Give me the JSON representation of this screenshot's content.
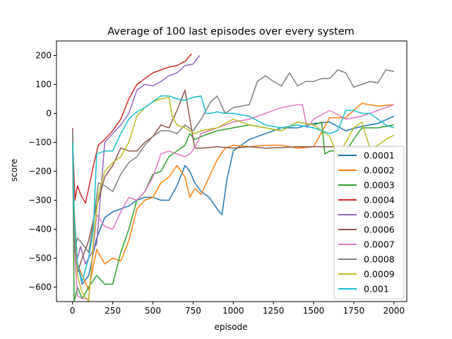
{
  "chart_data": {
    "type": "line",
    "title": "Average of 100 last episodes over every system",
    "xlabel": "episode",
    "ylabel": "score",
    "xlim": [
      -100,
      2080
    ],
    "ylim": [
      -650,
      250
    ],
    "xticks": [
      0,
      250,
      500,
      750,
      1000,
      1250,
      1500,
      1750,
      2000
    ],
    "yticks": [
      -600,
      -500,
      -400,
      -300,
      -200,
      -100,
      0,
      100,
      200
    ],
    "xtick_labels": [
      "0",
      "250",
      "500",
      "750",
      "1000",
      "1250",
      "1500",
      "1750",
      "2000"
    ],
    "ytick_labels": [
      "−600",
      "−500",
      "−400",
      "−300",
      "−200",
      "−100",
      "0",
      "100",
      "200"
    ],
    "grid": false,
    "legend_position": "lower-right",
    "series": [
      {
        "name": "0.0001",
        "color": "#1f77b4",
        "x": [
          0,
          10,
          30,
          60,
          100,
          150,
          200,
          250,
          300,
          350,
          400,
          450,
          500,
          550,
          600,
          650,
          700,
          730,
          760,
          800,
          850,
          900,
          930,
          960,
          1000,
          1100,
          1200,
          1300,
          1400,
          1500,
          1600,
          1700,
          1800,
          1900,
          2000
        ],
        "y": [
          -100,
          -380,
          -520,
          -590,
          -560,
          -430,
          -360,
          -340,
          -330,
          -320,
          -300,
          -290,
          -290,
          -300,
          -300,
          -250,
          -180,
          -200,
          -240,
          -270,
          -290,
          -330,
          -350,
          -230,
          -130,
          -90,
          -70,
          -50,
          -50,
          -35,
          -30,
          -60,
          -45,
          -35,
          -10
        ]
      },
      {
        "name": "0.0002",
        "color": "#ff7f0e",
        "x": [
          0,
          10,
          30,
          60,
          100,
          150,
          200,
          250,
          300,
          350,
          400,
          450,
          500,
          550,
          600,
          650,
          700,
          730,
          760,
          800,
          850,
          900,
          950,
          1000,
          1100,
          1200,
          1300,
          1400,
          1500,
          1600,
          1700,
          1800,
          1900,
          2000
        ],
        "y": [
          -100,
          -330,
          -520,
          -560,
          -610,
          -470,
          -520,
          -500,
          -510,
          -440,
          -330,
          -300,
          -290,
          -240,
          -220,
          -180,
          -220,
          -290,
          -260,
          -280,
          -220,
          -160,
          -120,
          -110,
          -115,
          -110,
          -110,
          -120,
          -115,
          -15,
          -15,
          35,
          25,
          30
        ]
      },
      {
        "name": "0.0003",
        "color": "#2ca02c",
        "x": [
          0,
          10,
          30,
          60,
          100,
          150,
          200,
          250,
          300,
          350,
          400,
          450,
          500,
          550,
          600,
          650,
          700,
          730,
          760,
          800,
          850,
          900,
          1000,
          1100,
          1200,
          1300,
          1400,
          1500,
          1550,
          1570,
          1600,
          1700,
          1800,
          1900,
          2000
        ],
        "y": [
          -100,
          -650,
          -600,
          -640,
          -600,
          -560,
          -590,
          -590,
          -480,
          -400,
          -300,
          -270,
          -210,
          -200,
          -150,
          -130,
          -110,
          -70,
          -90,
          -80,
          -70,
          -60,
          -50,
          -40,
          -50,
          -60,
          -30,
          -40,
          -30,
          -140,
          -130,
          -130,
          -50,
          -50,
          -40
        ]
      },
      {
        "name": "0.0004",
        "color": "#d62728",
        "x": [
          0,
          15,
          30,
          50,
          80,
          100,
          130,
          160,
          200,
          250,
          300,
          350,
          400,
          450,
          500,
          550,
          600,
          650,
          700,
          740
        ],
        "y": [
          -100,
          -300,
          -250,
          -280,
          -310,
          -260,
          -180,
          -110,
          -90,
          -60,
          -20,
          50,
          100,
          120,
          140,
          150,
          160,
          165,
          180,
          205
        ]
      },
      {
        "name": "0.0005",
        "color": "#9467bd",
        "x": [
          0,
          10,
          30,
          50,
          80,
          100,
          150,
          200,
          250,
          300,
          350,
          400,
          450,
          500,
          550,
          600,
          650,
          700,
          750,
          790
        ],
        "y": [
          -100,
          -440,
          -500,
          -460,
          -520,
          -500,
          -450,
          -100,
          -70,
          -40,
          0,
          80,
          100,
          95,
          110,
          130,
          140,
          165,
          170,
          200
        ]
      },
      {
        "name": "0.0006",
        "color": "#8c564b",
        "x": [
          0,
          10,
          30,
          60,
          100,
          150,
          200,
          250,
          300,
          350,
          400,
          450,
          500,
          550,
          600,
          650,
          700,
          730,
          760,
          800,
          900,
          1000,
          1100,
          1200,
          1300,
          1400,
          1500,
          1600,
          1700,
          1800,
          1900,
          2000
        ],
        "y": [
          -50,
          -430,
          -550,
          -500,
          -440,
          -320,
          -220,
          -180,
          -120,
          -130,
          -130,
          -100,
          -80,
          -40,
          -50,
          10,
          80,
          -20,
          -120,
          -120,
          -115,
          -120,
          -115,
          -120,
          -118,
          -115,
          -115,
          -115,
          -115,
          -118,
          -115,
          -115
        ]
      },
      {
        "name": "0.0007",
        "color": "#e377c2",
        "x": [
          0,
          10,
          30,
          60,
          100,
          150,
          200,
          250,
          300,
          350,
          400,
          450,
          500,
          550,
          600,
          650,
          700,
          730,
          760,
          800,
          900,
          1000,
          1100,
          1200,
          1300,
          1400,
          1430,
          1460,
          1500,
          1600,
          1700,
          1800,
          1900,
          2000
        ],
        "y": [
          -100,
          -450,
          -630,
          -640,
          -640,
          -350,
          -390,
          -400,
          -340,
          -290,
          -300,
          -270,
          -220,
          -140,
          -130,
          -140,
          -150,
          -140,
          -120,
          -70,
          -50,
          -30,
          -20,
          0,
          20,
          30,
          30,
          -50,
          -20,
          10,
          -20,
          -10,
          10,
          30
        ]
      },
      {
        "name": "0.0008",
        "color": "#7f7f7f",
        "x": [
          0,
          10,
          30,
          60,
          100,
          130,
          160,
          200,
          250,
          300,
          350,
          400,
          450,
          500,
          550,
          600,
          650,
          700,
          750,
          800,
          830,
          860,
          900,
          950,
          1000,
          1100,
          1150,
          1200,
          1250,
          1300,
          1350,
          1400,
          1450,
          1500,
          1550,
          1600,
          1650,
          1700,
          1750,
          1800,
          1850,
          1900,
          1950,
          2000
        ],
        "y": [
          -60,
          -480,
          -430,
          -450,
          -480,
          -380,
          -240,
          -250,
          -270,
          -210,
          -170,
          -150,
          -110,
          -80,
          -60,
          -60,
          -70,
          -40,
          -60,
          -20,
          10,
          40,
          60,
          0,
          20,
          30,
          110,
          130,
          110,
          95,
          140,
          95,
          110,
          110,
          120,
          120,
          150,
          140,
          90,
          100,
          110,
          105,
          150,
          145
        ]
      },
      {
        "name": "0.0009",
        "color": "#bcbd22",
        "x": [
          0,
          10,
          30,
          60,
          100,
          130,
          160,
          200,
          250,
          300,
          350,
          400,
          450,
          500,
          550,
          600,
          620,
          650,
          700,
          730,
          760,
          800,
          900,
          1000,
          1100,
          1200,
          1300,
          1400,
          1500,
          1600,
          1650,
          1700,
          1750,
          1800,
          1850,
          1900,
          1950,
          2000
        ],
        "y": [
          -100,
          -350,
          -560,
          -620,
          -650,
          -440,
          -280,
          -200,
          -170,
          -150,
          -100,
          -10,
          20,
          40,
          50,
          55,
          -10,
          -40,
          -50,
          -60,
          -70,
          -60,
          -50,
          -20,
          -40,
          -50,
          -60,
          -30,
          -40,
          -80,
          -150,
          -100,
          -50,
          -30,
          -120,
          -110,
          -90,
          -75
        ]
      },
      {
        "name": "0.001",
        "color": "#17becf",
        "x": [
          0,
          10,
          30,
          60,
          100,
          130,
          150,
          200,
          250,
          300,
          350,
          400,
          450,
          500,
          550,
          600,
          650,
          700,
          750,
          800,
          830,
          860,
          900,
          950,
          1000,
          1100,
          1200,
          1300,
          1400,
          1500,
          1550,
          1600,
          1650,
          1700,
          1750,
          1800,
          1850,
          1900,
          1950,
          2000
        ],
        "y": [
          -100,
          -350,
          -520,
          -580,
          -500,
          -400,
          -140,
          -130,
          -130,
          -70,
          -20,
          5,
          20,
          40,
          60,
          60,
          50,
          45,
          55,
          60,
          0,
          0,
          5,
          0,
          0,
          -10,
          -40,
          -50,
          -40,
          -50,
          -60,
          -70,
          -60,
          10,
          10,
          0,
          0,
          -20,
          -40,
          -50
        ]
      }
    ]
  }
}
